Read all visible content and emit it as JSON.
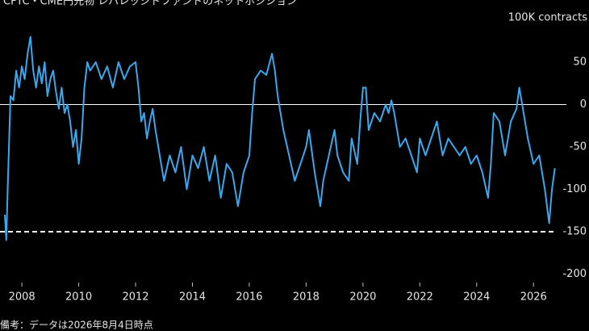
{
  "chart_data": {
    "type": "line",
    "title": "CFTC・CME円先物 レバレッジドファンドのネットポジション",
    "y_axis_label": "100K contracts",
    "footnote": "備考：データは2026年8月4日時点",
    "xlim": [
      2007.23,
      2027.1
    ],
    "xticks": [
      2008,
      2010,
      2012,
      2014,
      2016,
      2018,
      2020,
      2022,
      2024,
      2026
    ],
    "ylim": [
      -210,
      90
    ],
    "yticks": [
      50,
      0,
      -50,
      -100,
      -150,
      -200
    ],
    "zero_line": true,
    "reference_line": -150,
    "series": [
      {
        "name": "net position",
        "color": "#39a9ef",
        "x": [
          2007.4,
          2007.45,
          2007.5,
          2007.6,
          2007.7,
          2007.8,
          2007.9,
          2008.0,
          2008.1,
          2008.2,
          2008.3,
          2008.4,
          2008.5,
          2008.6,
          2008.7,
          2008.8,
          2008.9,
          2009.0,
          2009.1,
          2009.2,
          2009.3,
          2009.4,
          2009.5,
          2009.6,
          2009.7,
          2009.8,
          2009.9,
          2010.0,
          2010.1,
          2010.2,
          2010.3,
          2010.4,
          2010.6,
          2010.8,
          2011.0,
          2011.2,
          2011.4,
          2011.6,
          2011.8,
          2012.0,
          2012.1,
          2012.2,
          2012.3,
          2012.4,
          2012.5,
          2012.6,
          2012.7,
          2012.8,
          2012.9,
          2013.0,
          2013.2,
          2013.4,
          2013.6,
          2013.8,
          2014.0,
          2014.2,
          2014.4,
          2014.6,
          2014.8,
          2015.0,
          2015.2,
          2015.4,
          2015.6,
          2015.8,
          2016.0,
          2016.1,
          2016.2,
          2016.4,
          2016.6,
          2016.8,
          2016.9,
          2017.0,
          2017.2,
          2017.4,
          2017.6,
          2017.8,
          2018.0,
          2018.1,
          2018.3,
          2018.5,
          2018.6,
          2018.8,
          2019.0,
          2019.1,
          2019.3,
          2019.5,
          2019.6,
          2019.8,
          2019.9,
          2020.0,
          2020.1,
          2020.2,
          2020.4,
          2020.6,
          2020.8,
          2020.9,
          2021.0,
          2021.1,
          2021.3,
          2021.5,
          2021.7,
          2021.9,
          2022.0,
          2022.2,
          2022.4,
          2022.6,
          2022.8,
          2023.0,
          2023.2,
          2023.4,
          2023.6,
          2023.8,
          2024.0,
          2024.2,
          2024.4,
          2024.5,
          2024.6,
          2024.8,
          2025.0,
          2025.2,
          2025.4,
          2025.5,
          2025.6,
          2025.8,
          2026.0,
          2026.2,
          2026.4,
          2026.55,
          2026.65,
          2026.75
        ],
        "values": [
          -130,
          -160,
          -100,
          10,
          5,
          40,
          20,
          45,
          30,
          60,
          80,
          40,
          20,
          45,
          25,
          50,
          10,
          30,
          40,
          15,
          -5,
          20,
          -10,
          0,
          -20,
          -50,
          -30,
          -70,
          -40,
          20,
          50,
          40,
          50,
          30,
          45,
          20,
          50,
          30,
          45,
          50,
          20,
          -20,
          -10,
          -40,
          -20,
          -5,
          -30,
          -50,
          -70,
          -90,
          -60,
          -80,
          -50,
          -100,
          -60,
          -75,
          -50,
          -90,
          -60,
          -110,
          -70,
          -80,
          -120,
          -80,
          -60,
          -10,
          30,
          40,
          35,
          60,
          40,
          10,
          -30,
          -60,
          -90,
          -70,
          -50,
          -30,
          -80,
          -120,
          -90,
          -60,
          -30,
          -60,
          -80,
          -90,
          -40,
          -70,
          -20,
          20,
          20,
          -30,
          -10,
          -20,
          0,
          -10,
          5,
          -10,
          -50,
          -40,
          -60,
          -80,
          -40,
          -60,
          -40,
          -20,
          -60,
          -40,
          -50,
          -60,
          -50,
          -70,
          -60,
          -80,
          -110,
          -70,
          -10,
          -20,
          -60,
          -20,
          -5,
          20,
          0,
          -40,
          -70,
          -60,
          -100,
          -140,
          -100,
          -75
        ]
      }
    ]
  }
}
